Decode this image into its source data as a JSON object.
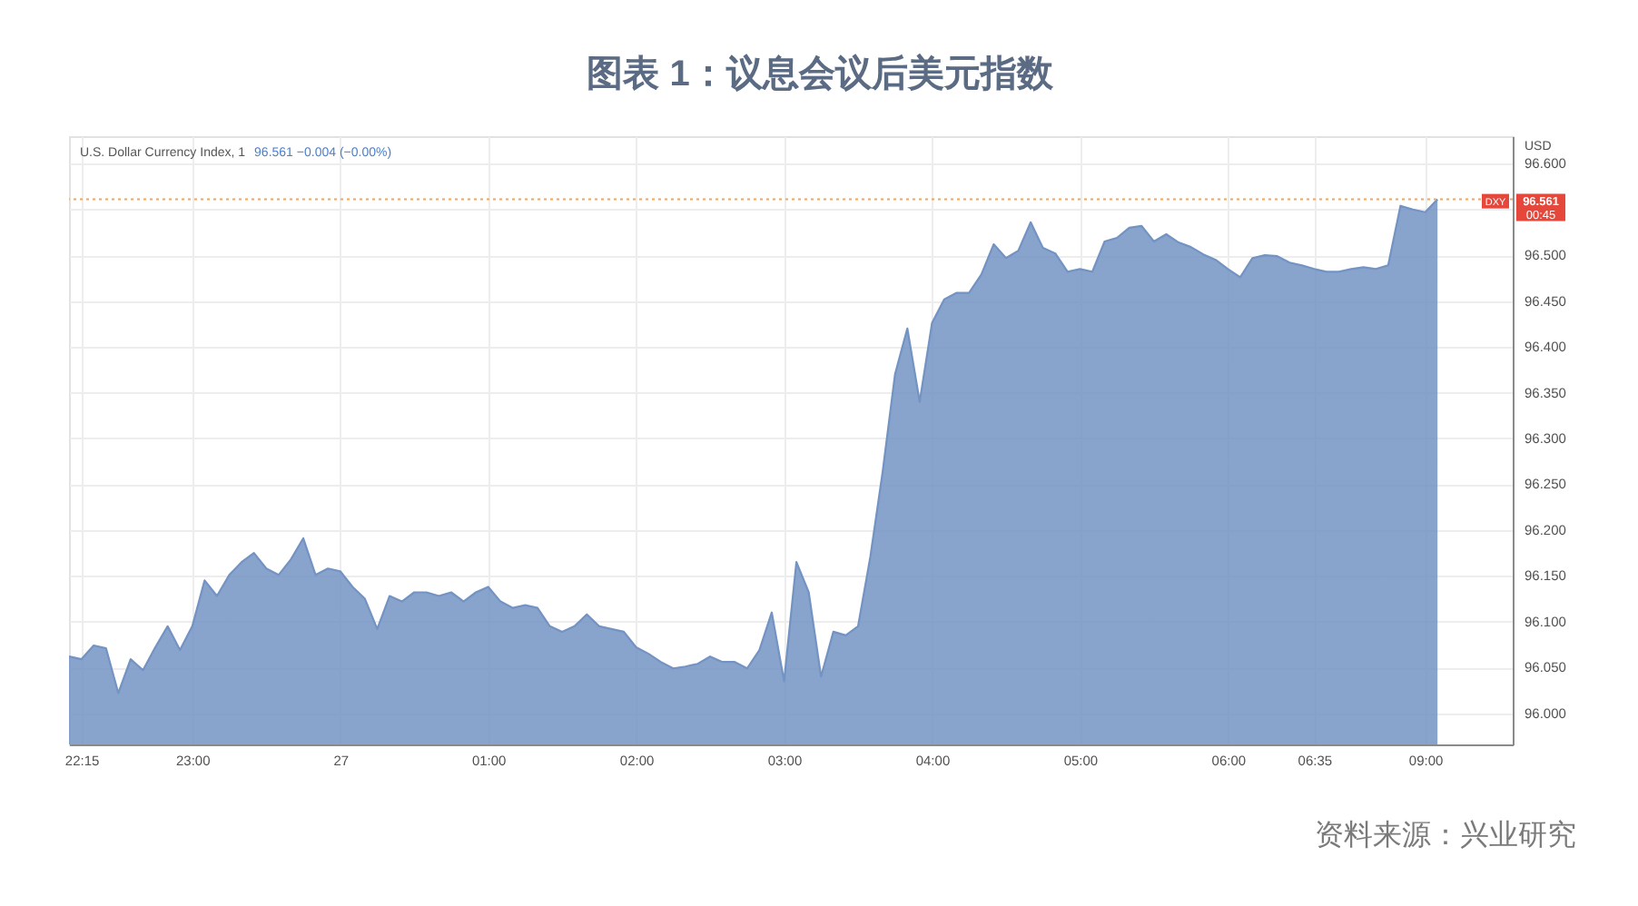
{
  "chart_data": {
    "type": "area",
    "title": "图表 1：议息会议后美元指数",
    "ylabel": "USD",
    "categories": [
      null,
      "22:15",
      null,
      null,
      null,
      null,
      null,
      null,
      null,
      null,
      "23:00",
      null,
      null,
      null,
      null,
      null,
      null,
      null,
      null,
      null,
      null,
      null,
      "27",
      null,
      null,
      null,
      null,
      null,
      null,
      null,
      null,
      null,
      null,
      null,
      "01:00",
      null,
      null,
      null,
      null,
      null,
      null,
      null,
      null,
      null,
      null,
      null,
      "02:00",
      null,
      null,
      null,
      null,
      null,
      null,
      null,
      null,
      null,
      null,
      null,
      "03:00",
      null,
      null,
      null,
      null,
      null,
      null,
      null,
      null,
      null,
      null,
      null,
      "04:00",
      null,
      null,
      null,
      null,
      null,
      null,
      null,
      null,
      null,
      null,
      null,
      "05:00",
      null,
      null,
      null,
      null,
      null,
      null,
      null,
      null,
      null,
      null,
      null,
      "06:00",
      null,
      null,
      null,
      null,
      null,
      null,
      "06:35",
      null,
      null,
      null,
      null,
      null,
      null,
      null,
      null,
      "09:00",
      null
    ],
    "values": [
      96.062,
      96.059,
      96.074,
      96.071,
      96.022,
      96.059,
      96.047,
      96.072,
      96.095,
      96.069,
      96.095,
      96.145,
      96.128,
      96.151,
      96.165,
      96.175,
      96.158,
      96.151,
      96.168,
      96.191,
      96.151,
      96.158,
      96.155,
      96.138,
      96.125,
      96.092,
      96.128,
      96.122,
      96.132,
      96.132,
      96.128,
      96.132,
      96.122,
      96.132,
      96.138,
      96.122,
      96.115,
      96.118,
      96.115,
      96.095,
      96.089,
      96.095,
      96.108,
      96.095,
      96.092,
      96.089,
      96.072,
      96.065,
      96.056,
      96.049,
      96.051,
      96.054,
      96.062,
      96.056,
      96.056,
      96.049,
      96.069,
      96.11,
      96.035,
      96.165,
      96.132,
      96.04,
      96.089,
      96.085,
      96.095,
      96.171,
      96.264,
      96.37,
      96.42,
      96.34,
      96.426,
      96.452,
      96.459,
      96.459,
      96.479,
      96.512,
      96.497,
      96.505,
      96.536,
      96.508,
      96.502,
      96.482,
      96.485,
      96.482,
      96.515,
      96.519,
      96.53,
      96.532,
      96.515,
      96.523,
      96.514,
      96.509,
      96.501,
      96.495,
      96.485,
      96.476,
      96.497,
      96.5,
      96.499,
      96.492,
      96.489,
      96.485,
      96.482,
      96.482,
      96.485,
      96.487,
      96.485,
      96.489,
      96.554,
      96.55,
      96.547,
      96.561
    ],
    "color": "#7393c3",
    "ylim": [
      95.966,
      96.63
    ],
    "yticks": [
      {
        "value": 96,
        "label": "96.000"
      },
      {
        "value": 96.05,
        "label": "96.050"
      },
      {
        "value": 96.1,
        "label": "96.100"
      },
      {
        "value": 96.15,
        "label": "96.150"
      },
      {
        "value": 96.2,
        "label": "96.200"
      },
      {
        "value": 96.25,
        "label": "96.250"
      },
      {
        "value": 96.3,
        "label": "96.300"
      },
      {
        "value": 96.35,
        "label": "96.350"
      },
      {
        "value": 96.4,
        "label": "96.400"
      },
      {
        "value": 96.45,
        "label": "96.450"
      },
      {
        "value": 96.5,
        "label": "96.500"
      },
      {
        "value": 96.55,
        "label": null
      },
      {
        "value": 96.6,
        "label": "96.600"
      }
    ],
    "grid": true,
    "ref_lines": [
      {
        "axis": "y",
        "value": 96.561,
        "label": "96.561",
        "color": "#f2a65a",
        "line_style": "dotted"
      }
    ],
    "annotations": [
      "U.S. Dollar Currency Index, 1",
      "96.561 −0.004 (−0.00%)",
      {
        "text": "DXY",
        "y": 96.561
      },
      "00:45",
      "资料来源：兴业研究"
    ]
  }
}
